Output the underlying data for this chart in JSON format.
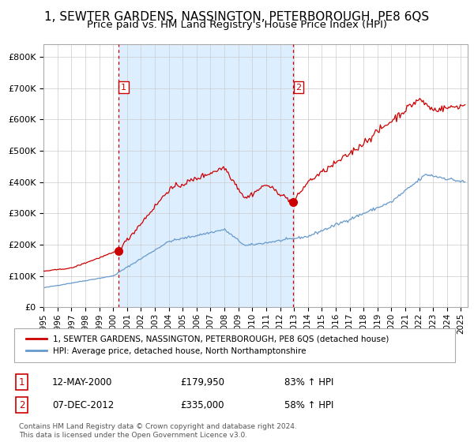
{
  "title": "1, SEWTER GARDENS, NASSINGTON, PETERBOROUGH, PE8 6QS",
  "subtitle": "Price paid vs. HM Land Registry's House Price Index (HPI)",
  "sale1_date_num": 2000.36,
  "sale1_price": 179950,
  "sale1_label": "1",
  "sale2_date_num": 2012.93,
  "sale2_price": 335000,
  "sale2_label": "2",
  "legend_line1": "1, SEWTER GARDENS, NASSINGTON, PETERBOROUGH, PE8 6QS (detached house)",
  "legend_line2": "HPI: Average price, detached house, North Northamptonshire",
  "table_row1": [
    "1",
    "12-MAY-2000",
    "£179,950",
    "83% ↑ HPI"
  ],
  "table_row2": [
    "2",
    "07-DEC-2012",
    "£335,000",
    "58% ↑ HPI"
  ],
  "footnote": "Contains HM Land Registry data © Crown copyright and database right 2024.\nThis data is licensed under the Open Government Licence v3.0.",
  "hpi_color": "#6699cc",
  "price_color": "#cc0000",
  "bg_shaded_color": "#ddeeff",
  "ylim": [
    0,
    840000
  ],
  "xlim_start": 1995.0,
  "xlim_end": 2025.5,
  "grid_color": "#cccccc",
  "title_fontsize": 11,
  "subtitle_fontsize": 9.5
}
